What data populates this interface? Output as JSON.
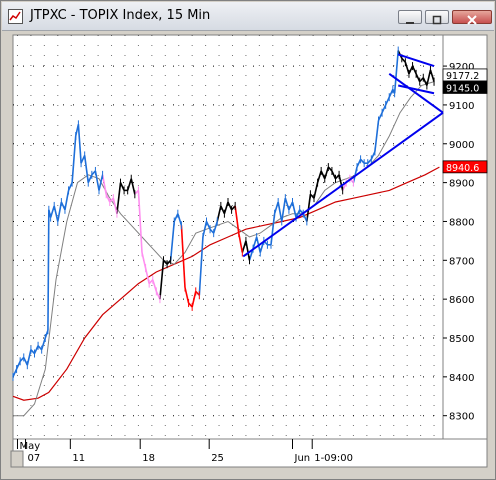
{
  "window": {
    "title": "JTPXC - TOPIX Index, 15 Min",
    "icons": [
      "chart-app-icon",
      "minimize-icon",
      "maximize-icon",
      "close-icon"
    ]
  },
  "chart_data": {
    "type": "line",
    "title": "JTPXC - TOPIX Index, 15 Min",
    "ylim": [
      8240,
      9280
    ],
    "y_ticks": [
      "9200",
      "9100",
      "9000",
      "8900",
      "8800",
      "8700",
      "8600",
      "8500",
      "8400",
      "8300"
    ],
    "x_ticks": [
      {
        "label": "May",
        "t": 5
      },
      {
        "label": "07",
        "t": 14
      },
      {
        "label": "11",
        "t": 64
      },
      {
        "label": "18",
        "t": 142
      },
      {
        "label": "25",
        "t": 219
      },
      {
        "label": "Jun",
        "t": 312
      },
      {
        "label": "1-09:00",
        "t": 334
      }
    ],
    "price_markers": [
      {
        "label": "9177.2",
        "value": 9177.2,
        "bg": "#ffffff",
        "fg": "#000000"
      },
      {
        "label": "9145.0",
        "value": 9145.0,
        "bg": "#000000",
        "fg": "#ffffff"
      },
      {
        "label": "8940.6",
        "value": 8940.6,
        "bg": "#ff0000",
        "fg": "#ffffff"
      }
    ],
    "colors": {
      "up": "#1e6fd9",
      "down_pink": "#ff8ff0",
      "down_red": "#ff0000",
      "neutral": "#000000",
      "slow_ma": "#cc0000",
      "fast_ma": "#808080",
      "trendline": "#0000ee",
      "plot_bg": "#ffffff",
      "grid": "#000000"
    },
    "grid": "dotted",
    "series": [
      {
        "role": "price",
        "points": [
          [
            0,
            8400
          ],
          [
            4,
            8420
          ],
          [
            8,
            8440
          ],
          [
            12,
            8450
          ],
          [
            16,
            8430
          ],
          [
            20,
            8470
          ],
          [
            24,
            8460
          ],
          [
            28,
            8480
          ],
          [
            32,
            8470
          ],
          [
            36,
            8500
          ],
          [
            39,
            8520
          ],
          [
            40,
            8830
          ],
          [
            42,
            8810
          ],
          [
            46,
            8840
          ],
          [
            50,
            8800
          ],
          [
            54,
            8850
          ],
          [
            58,
            8830
          ],
          [
            62,
            8880
          ],
          [
            66,
            8900
          ],
          [
            70,
            9020
          ],
          [
            73,
            9050
          ],
          [
            76,
            8950
          ],
          [
            80,
            8970
          ],
          [
            84,
            8900
          ],
          [
            88,
            8920
          ],
          [
            92,
            8930
          ],
          [
            96,
            8880
          ],
          [
            100,
            8920
          ],
          [
            104,
            8870
          ],
          [
            108,
            8850
          ],
          [
            112,
            8860
          ],
          [
            116,
            8820
          ],
          [
            120,
            8900
          ],
          [
            124,
            8880
          ],
          [
            128,
            8880
          ],
          [
            132,
            8910
          ],
          [
            136,
            8870
          ],
          [
            140,
            8880
          ],
          [
            144,
            8720
          ],
          [
            148,
            8680
          ],
          [
            152,
            8640
          ],
          [
            156,
            8650
          ],
          [
            160,
            8620
          ],
          [
            164,
            8600
          ],
          [
            168,
            8700
          ],
          [
            172,
            8690
          ],
          [
            176,
            8700
          ],
          [
            180,
            8800
          ],
          [
            184,
            8820
          ],
          [
            188,
            8790
          ],
          [
            192,
            8630
          ],
          [
            196,
            8590
          ],
          [
            200,
            8580
          ],
          [
            204,
            8620
          ],
          [
            208,
            8610
          ],
          [
            212,
            8760
          ],
          [
            216,
            8800
          ],
          [
            220,
            8780
          ],
          [
            224,
            8770
          ],
          [
            228,
            8800
          ],
          [
            232,
            8840
          ],
          [
            236,
            8820
          ],
          [
            240,
            8850
          ],
          [
            244,
            8830
          ],
          [
            248,
            8840
          ],
          [
            252,
            8770
          ],
          [
            256,
            8720
          ],
          [
            260,
            8750
          ],
          [
            264,
            8700
          ],
          [
            268,
            8730
          ],
          [
            272,
            8760
          ],
          [
            276,
            8720
          ],
          [
            280,
            8750
          ],
          [
            284,
            8740
          ],
          [
            288,
            8740
          ],
          [
            292,
            8820
          ],
          [
            296,
            8850
          ],
          [
            300,
            8800
          ],
          [
            304,
            8860
          ],
          [
            308,
            8830
          ],
          [
            312,
            8850
          ],
          [
            316,
            8810
          ],
          [
            320,
            8830
          ],
          [
            324,
            8820
          ],
          [
            328,
            8800
          ],
          [
            332,
            8870
          ],
          [
            336,
            8860
          ],
          [
            340,
            8900
          ],
          [
            344,
            8930
          ],
          [
            348,
            8910
          ],
          [
            352,
            8940
          ],
          [
            356,
            8930
          ],
          [
            360,
            8910
          ],
          [
            364,
            8920
          ],
          [
            368,
            8880
          ],
          [
            372,
            8900
          ],
          [
            376,
            8910
          ],
          [
            380,
            8900
          ],
          [
            384,
            8940
          ],
          [
            388,
            8960
          ],
          [
            392,
            8950
          ],
          [
            396,
            8950
          ],
          [
            400,
            8960
          ],
          [
            404,
            8980
          ],
          [
            408,
            9060
          ],
          [
            412,
            9080
          ],
          [
            416,
            9100
          ],
          [
            420,
            9120
          ],
          [
            424,
            9140
          ],
          [
            426,
            9130
          ],
          [
            430,
            9240
          ],
          [
            434,
            9220
          ],
          [
            438,
            9210
          ],
          [
            442,
            9180
          ],
          [
            446,
            9200
          ],
          [
            450,
            9180
          ],
          [
            454,
            9160
          ],
          [
            458,
            9170
          ],
          [
            462,
            9150
          ],
          [
            466,
            9190
          ],
          [
            470,
            9160
          ]
        ]
      },
      {
        "name": "slow MA",
        "role": "slow_ma",
        "points": [
          [
            0,
            8350
          ],
          [
            12,
            8340
          ],
          [
            28,
            8345
          ],
          [
            40,
            8360
          ],
          [
            60,
            8420
          ],
          [
            80,
            8500
          ],
          [
            100,
            8560
          ],
          [
            120,
            8600
          ],
          [
            140,
            8640
          ],
          [
            160,
            8670
          ],
          [
            180,
            8690
          ],
          [
            200,
            8710
          ],
          [
            220,
            8740
          ],
          [
            240,
            8760
          ],
          [
            260,
            8780
          ],
          [
            280,
            8790
          ],
          [
            300,
            8800
          ],
          [
            320,
            8810
          ],
          [
            340,
            8830
          ],
          [
            360,
            8850
          ],
          [
            380,
            8860
          ],
          [
            400,
            8870
          ],
          [
            420,
            8880
          ],
          [
            440,
            8900
          ],
          [
            460,
            8920
          ],
          [
            476,
            8940
          ]
        ]
      },
      {
        "name": "fast MA",
        "role": "fast_ma",
        "points": [
          [
            0,
            8300
          ],
          [
            12,
            8300
          ],
          [
            24,
            8330
          ],
          [
            36,
            8420
          ],
          [
            48,
            8650
          ],
          [
            60,
            8800
          ],
          [
            72,
            8900
          ],
          [
            84,
            8920
          ],
          [
            96,
            8910
          ],
          [
            108,
            8860
          ],
          [
            120,
            8820
          ],
          [
            132,
            8790
          ],
          [
            144,
            8760
          ],
          [
            156,
            8730
          ],
          [
            168,
            8700
          ],
          [
            180,
            8690
          ],
          [
            192,
            8720
          ],
          [
            204,
            8770
          ],
          [
            216,
            8780
          ],
          [
            228,
            8790
          ],
          [
            240,
            8800
          ],
          [
            252,
            8780
          ],
          [
            264,
            8760
          ],
          [
            276,
            8770
          ],
          [
            288,
            8790
          ],
          [
            300,
            8810
          ],
          [
            312,
            8820
          ],
          [
            324,
            8820
          ],
          [
            336,
            8840
          ],
          [
            348,
            8880
          ],
          [
            360,
            8900
          ],
          [
            372,
            8910
          ],
          [
            384,
            8920
          ],
          [
            396,
            8940
          ],
          [
            408,
            8970
          ],
          [
            420,
            9020
          ],
          [
            432,
            9080
          ],
          [
            444,
            9120
          ],
          [
            456,
            9150
          ],
          [
            470,
            9160
          ]
        ]
      }
    ],
    "trendlines": [
      {
        "from": [
          257,
          8710
        ],
        "to": [
          480,
          9080
        ]
      },
      {
        "from": [
          420,
          9180
        ],
        "to": [
          480,
          9080
        ]
      },
      {
        "from": [
          430,
          9230
        ],
        "to": [
          470,
          9200
        ]
      },
      {
        "from": [
          430,
          9150
        ],
        "to": [
          470,
          9130
        ]
      }
    ]
  }
}
